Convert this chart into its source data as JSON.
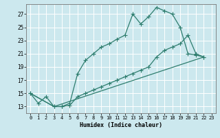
{
  "xlabel": "Humidex (Indice chaleur)",
  "bg_color": "#cce8ee",
  "grid_color": "#ffffff",
  "line_color": "#2e7d6e",
  "xlim": [
    -0.5,
    23.5
  ],
  "ylim": [
    12.0,
    28.5
  ],
  "xticks": [
    0,
    1,
    2,
    3,
    4,
    5,
    6,
    7,
    8,
    9,
    10,
    11,
    12,
    13,
    14,
    15,
    16,
    17,
    18,
    19,
    20,
    21,
    22,
    23
  ],
  "yticks": [
    13,
    15,
    17,
    19,
    21,
    23,
    25,
    27
  ],
  "line1_x": [
    0,
    1,
    2,
    3,
    4,
    5,
    6,
    7,
    8,
    9,
    10,
    11,
    12,
    13,
    14,
    15,
    16,
    17,
    18,
    19,
    20,
    21,
    22
  ],
  "line1_y": [
    15,
    13.5,
    14.5,
    13,
    13,
    13.5,
    18,
    20,
    21,
    22,
    22.5,
    23.2,
    23.8,
    27,
    25.5,
    26.6,
    28,
    27.5,
    27,
    25,
    21,
    20.8,
    20.5
  ],
  "line2_x": [
    0,
    3,
    4,
    5,
    6,
    7,
    8,
    9,
    10,
    11,
    12,
    13,
    14,
    15,
    16,
    17,
    18,
    19,
    20,
    21,
    22
  ],
  "line2_y": [
    15,
    13,
    13,
    13.2,
    14.5,
    15,
    15.5,
    16,
    16.5,
    17,
    17.5,
    18,
    18.5,
    19,
    20.5,
    21.5,
    22,
    22.5,
    23.8,
    21,
    20.5
  ],
  "line3_x": [
    0,
    3,
    22
  ],
  "line3_y": [
    15,
    13,
    20.5
  ]
}
